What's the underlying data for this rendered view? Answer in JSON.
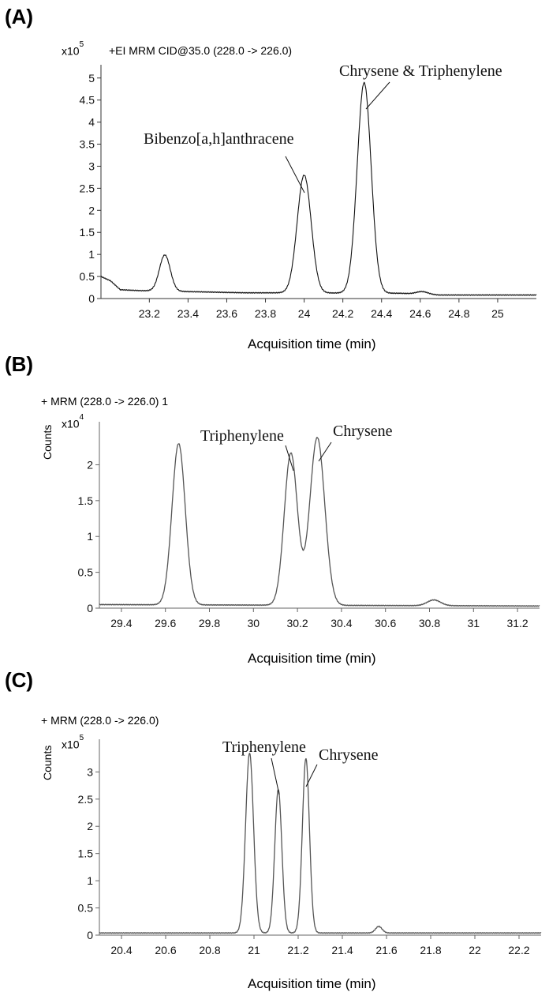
{
  "panels": {
    "a": {
      "label": "(A)"
    },
    "b": {
      "label": "(B)"
    },
    "c": {
      "label": "(C)"
    }
  },
  "chart_data": [
    {
      "type": "line",
      "panel": "(A)",
      "trace_title": "+EI MRM CID@35.0 (228.0 -> 226.0)",
      "multiplier_base": "x10",
      "multiplier_exp": "5",
      "ylabel": "",
      "xlabel": "Acquisition time (min)",
      "xlim": [
        22.95,
        25.2
      ],
      "ylim": [
        0,
        5.3
      ],
      "x_ticks": [
        23.2,
        23.4,
        23.6,
        23.8,
        24,
        24.2,
        24.4,
        24.6,
        24.8,
        25
      ],
      "x_tick_labels": [
        "23.2",
        "23.4",
        "23.6",
        "23.8",
        "24",
        "24.2",
        "24.4",
        "24.6",
        "24.8",
        "25"
      ],
      "y_ticks": [
        0,
        0.5,
        1,
        1.5,
        2,
        2.5,
        3,
        3.5,
        4,
        4.5,
        5
      ],
      "y_tick_labels": [
        "0",
        "0.5",
        "1",
        "1.5",
        "2",
        "2.5",
        "3",
        "3.5",
        "4",
        "4.5",
        "5"
      ],
      "baseline": [
        [
          22.95,
          0.5
        ],
        [
          23.0,
          0.4
        ],
        [
          23.05,
          0.2
        ],
        [
          23.15,
          0.18
        ],
        [
          23.7,
          0.13
        ],
        [
          23.9,
          0.13
        ],
        [
          24.5,
          0.12
        ],
        [
          24.7,
          0.08
        ],
        [
          25.2,
          0.08
        ]
      ],
      "peaks": [
        {
          "x": 23.28,
          "height": 0.82,
          "sigma": 0.028
        },
        {
          "x": 24.0,
          "height": 2.67,
          "sigma": 0.036
        },
        {
          "x": 24.31,
          "height": 4.77,
          "sigma": 0.036
        },
        {
          "x": 24.61,
          "height": 0.06,
          "sigma": 0.03
        }
      ],
      "annotations": [
        {
          "text": "Bibenzo[a,h]anthracene",
          "x": 24.0,
          "y": 2.67
        },
        {
          "text": "Chrysene  & Triphenylene",
          "x": 24.31,
          "y": 4.77
        }
      ]
    },
    {
      "type": "line",
      "panel": "(B)",
      "trace_title": "+ MRM (228.0 -> 226.0) 1",
      "multiplier_base": "x10",
      "multiplier_exp": "4",
      "ylabel": "Counts",
      "xlabel": "Acquisition time (min)",
      "xlim": [
        29.3,
        31.3
      ],
      "ylim": [
        0,
        2.6
      ],
      "x_ticks": [
        29.4,
        29.6,
        29.8,
        30,
        30.2,
        30.4,
        30.6,
        30.8,
        31,
        31.2
      ],
      "x_tick_labels": [
        "29.4",
        "29.6",
        "29.8",
        "30",
        "30.2",
        "30.4",
        "30.6",
        "30.8",
        "31",
        "31.2"
      ],
      "y_ticks": [
        0,
        0.5,
        1,
        1.5,
        2
      ],
      "y_tick_labels": [
        "0",
        "0.5",
        "1",
        "1.5",
        "2"
      ],
      "baseline": [
        [
          29.3,
          0.05
        ],
        [
          31.3,
          0.03
        ]
      ],
      "peaks": [
        {
          "x": 29.66,
          "height": 2.25,
          "sigma": 0.03
        },
        {
          "x": 30.17,
          "height": 2.12,
          "sigma": 0.03
        },
        {
          "x": 30.29,
          "height": 2.34,
          "sigma": 0.034
        },
        {
          "x": 30.82,
          "height": 0.08,
          "sigma": 0.03
        }
      ],
      "annotations": [
        {
          "text": "Triphenylene",
          "x": 30.17,
          "y": 2.12
        },
        {
          "text": "Chrysene",
          "x": 30.29,
          "y": 2.34
        }
      ]
    },
    {
      "type": "line",
      "panel": "(C)",
      "trace_title": "+ MRM (228.0 -> 226.0)",
      "multiplier_base": "x10",
      "multiplier_exp": "5",
      "ylabel": "Counts",
      "xlabel": "Acquisition time (min)",
      "xlim": [
        20.3,
        22.3
      ],
      "ylim": [
        0,
        3.6
      ],
      "x_ticks": [
        20.4,
        20.6,
        20.8,
        21,
        21.2,
        21.4,
        21.6,
        21.8,
        22,
        22.2
      ],
      "x_tick_labels": [
        "20.4",
        "20.6",
        "20.8",
        "21",
        "21.2",
        "21.4",
        "21.6",
        "21.8",
        "22",
        "22.2"
      ],
      "y_ticks": [
        0,
        0.5,
        1,
        1.5,
        2,
        2.5,
        3
      ],
      "y_tick_labels": [
        "0",
        "0.5",
        "1",
        "1.5",
        "2",
        "2.5",
        "3"
      ],
      "baseline": [
        [
          20.3,
          0.04
        ],
        [
          22.3,
          0.04
        ]
      ],
      "peaks": [
        {
          "x": 20.98,
          "height": 3.31,
          "sigma": 0.018
        },
        {
          "x": 21.11,
          "height": 2.64,
          "sigma": 0.016
        },
        {
          "x": 21.235,
          "height": 3.21,
          "sigma": 0.016
        },
        {
          "x": 21.565,
          "height": 0.12,
          "sigma": 0.015
        }
      ],
      "annotations": [
        {
          "text": "Triphenylene",
          "x": 21.11,
          "y": 2.64
        },
        {
          "text": "Chrysene",
          "x": 21.235,
          "y": 3.21
        }
      ]
    }
  ]
}
